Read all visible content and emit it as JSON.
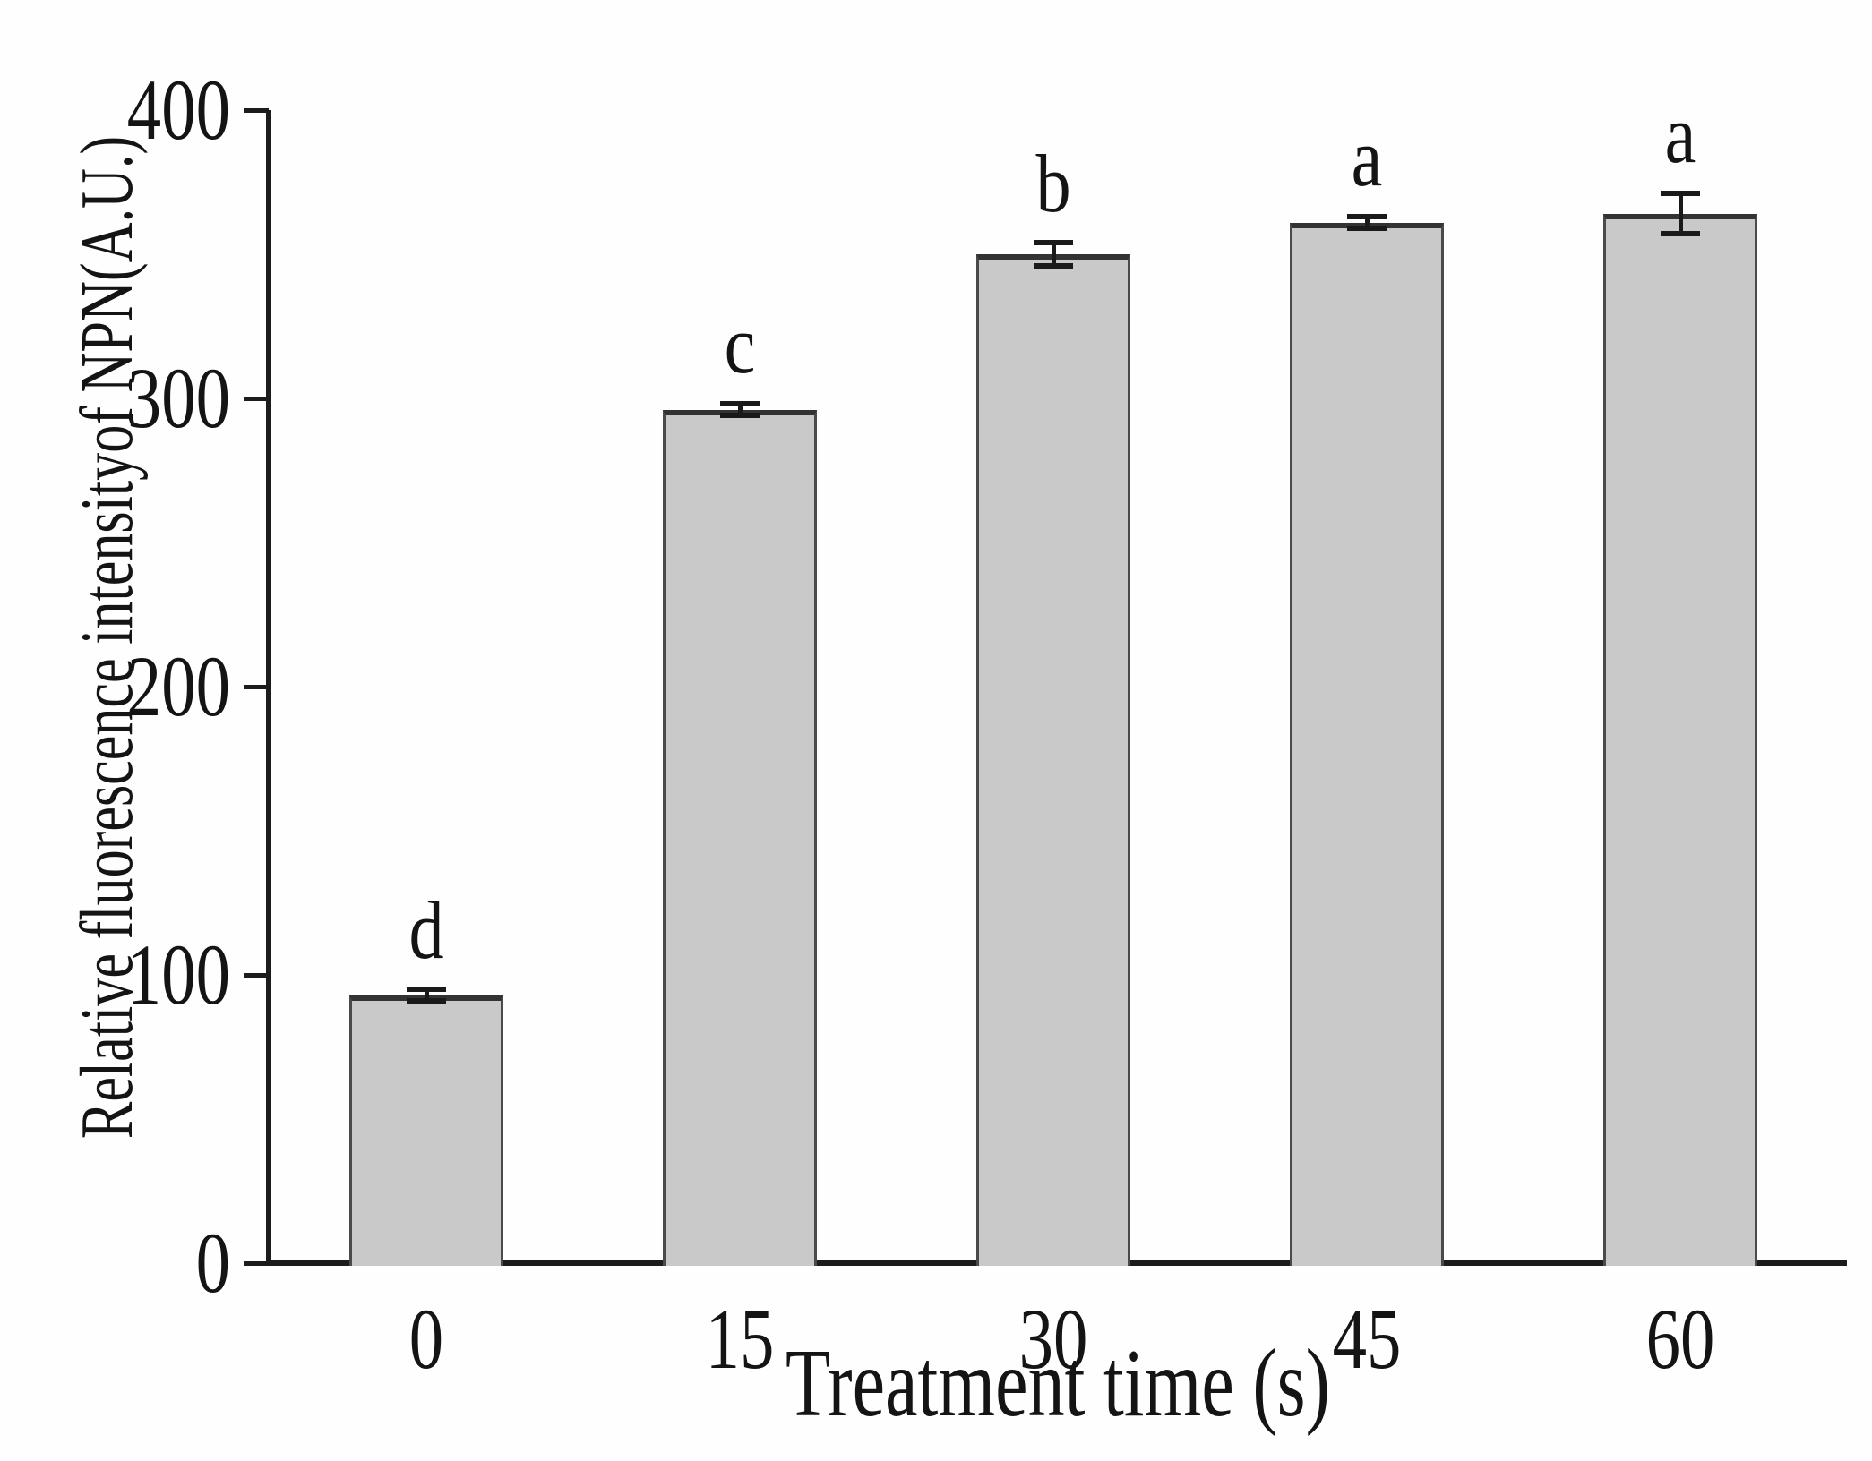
{
  "figure": {
    "background": "#fefefe",
    "axis_color": "#1c1c1c",
    "text_color": "#141414"
  },
  "chart_data": {
    "type": "bar",
    "title": "",
    "xlabel": "Treatment time (s)",
    "ylabel": "Relative fluorescence intensityof NPN(A.U.)",
    "categories": [
      "0",
      "15",
      "30",
      "45",
      "60"
    ],
    "values": [
      93,
      296,
      350,
      361,
      364
    ],
    "error_bars": [
      2,
      2,
      4,
      2,
      7
    ],
    "significance_letters": [
      "d",
      "c",
      "b",
      "a",
      "a"
    ],
    "ylim": [
      0,
      400
    ],
    "yticks": [
      "0",
      "100",
      "200",
      "300",
      "400"
    ],
    "grid": false,
    "legend": "none",
    "bar_color": "#c9c9c9",
    "bar_border_color": "#4a4a4a",
    "error_bar_color": "#1a1a1a",
    "units": "A.U."
  }
}
